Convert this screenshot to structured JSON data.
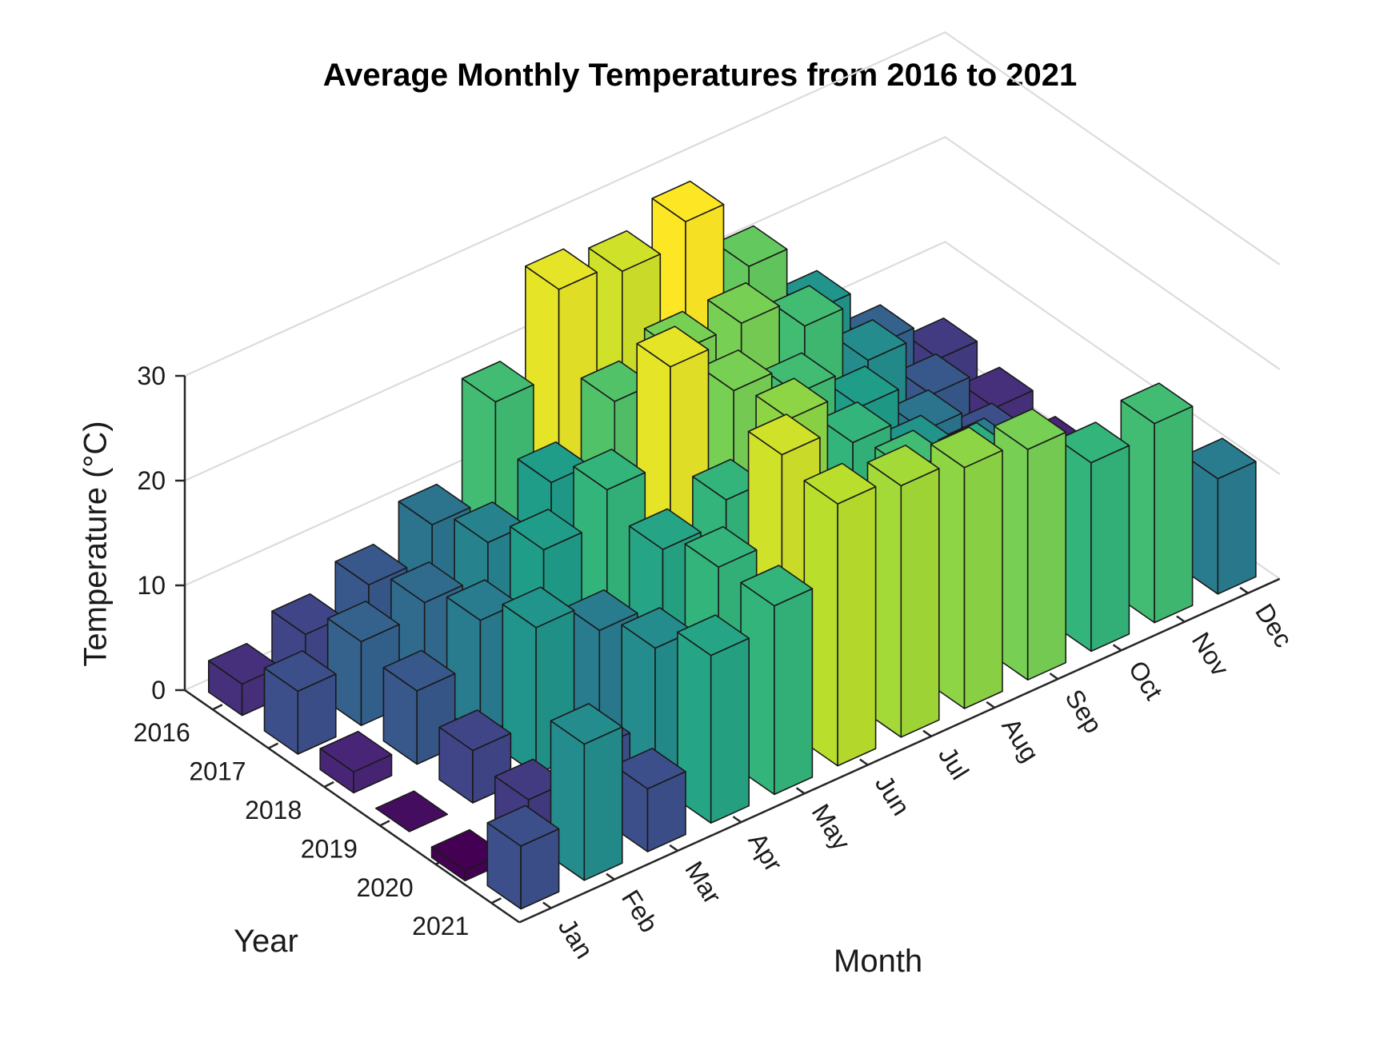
{
  "chart_data": {
    "type": "bar3d",
    "title": "Average Monthly Temperatures from 2016 to 2021",
    "xlabel": "Month",
    "ylabel": "Year",
    "zlabel": "Temperature (°C)",
    "months": [
      "Jan",
      "Feb",
      "Mar",
      "Apr",
      "May",
      "Jun",
      "Jul",
      "Aug",
      "Sep",
      "Oct",
      "Nov",
      "Dec"
    ],
    "years": [
      "2016",
      "2017",
      "2018",
      "2019",
      "2020",
      "2021"
    ],
    "zticks": [
      "0",
      "10",
      "20",
      "30"
    ],
    "zlim": [
      0,
      30
    ],
    "grid": true,
    "colormap": "viridis",
    "values": [
      [
        3,
        5,
        7,
        10,
        19,
        27,
        26,
        28,
        21,
        14,
        8,
        4
      ],
      [
        6,
        8,
        9,
        12,
        15,
        20,
        22,
        22,
        19,
        13,
        7,
        3
      ],
      [
        2,
        7,
        11,
        15,
        18,
        27,
        22,
        19,
        15,
        10,
        6,
        2
      ],
      [
        0,
        5,
        14,
        11,
        16,
        18,
        23,
        18,
        14,
        11,
        5,
        1
      ],
      [
        -1,
        4,
        6,
        13,
        18,
        26,
        18,
        19,
        17,
        14,
        8,
        4
      ],
      [
        6,
        13,
        6,
        16,
        18,
        25,
        24,
        23,
        22,
        18,
        19,
        11
      ]
    ]
  }
}
